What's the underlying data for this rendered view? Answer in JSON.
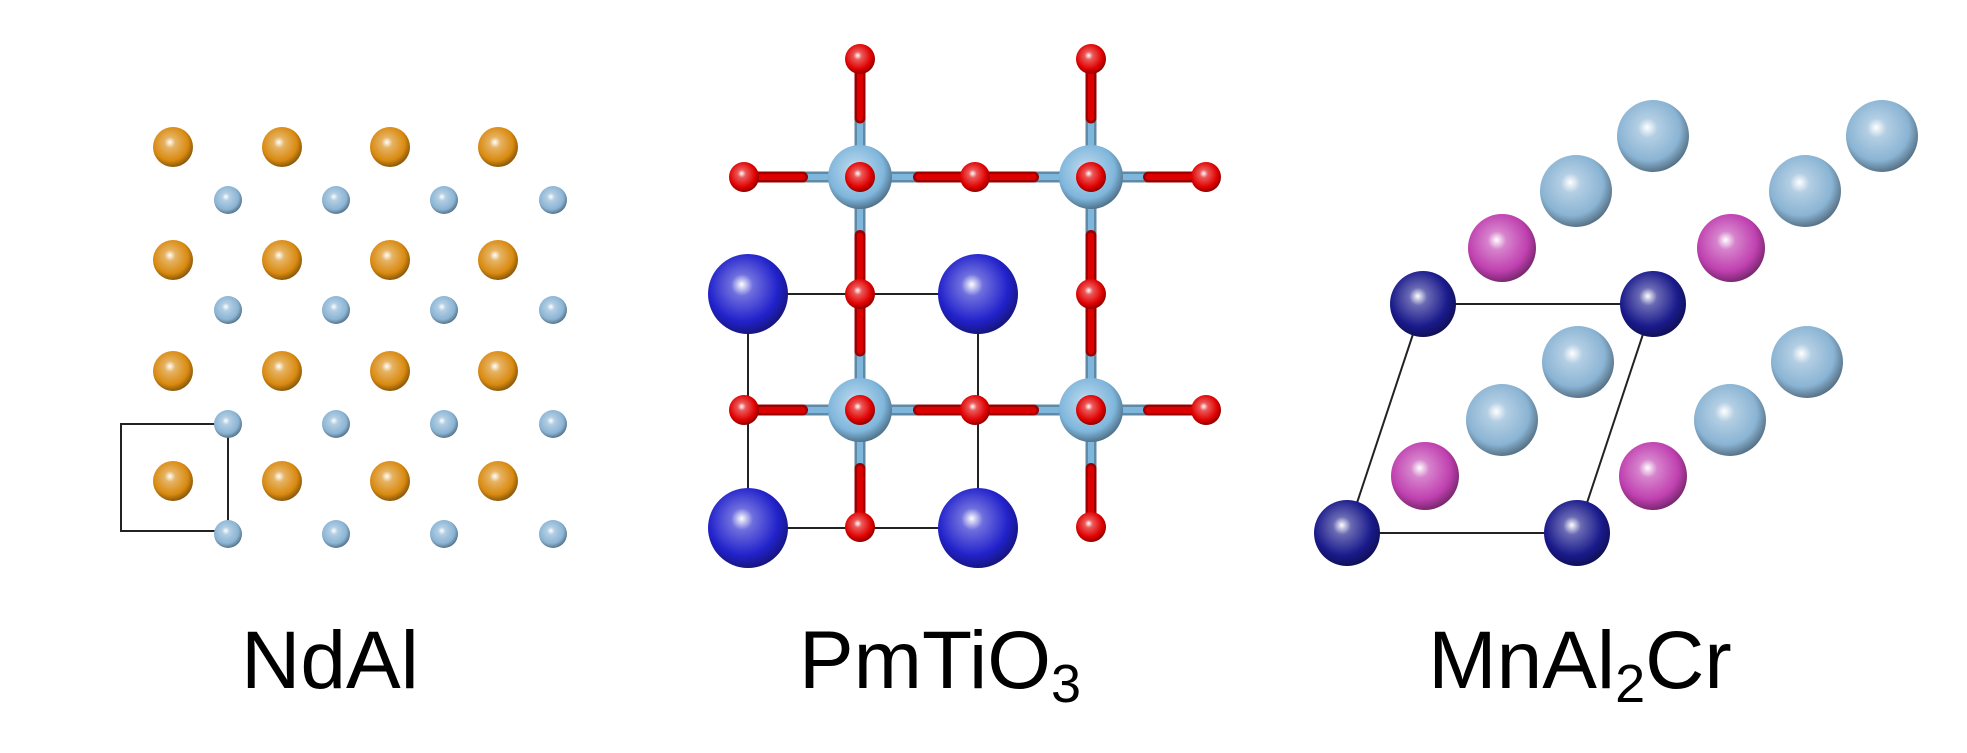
{
  "panels": [
    {
      "formula": "NdAl",
      "formula_parts": [
        {
          "text": "NdAl",
          "sub": ""
        }
      ],
      "atom_species": [
        "Nd",
        "Al"
      ]
    },
    {
      "formula": "PmTiO3",
      "formula_parts": [
        {
          "text": "PmTiO",
          "sub": "3"
        }
      ],
      "atom_species": [
        "Pm",
        "Ti",
        "O"
      ]
    },
    {
      "formula": "MnAl2Cr",
      "formula_parts": [
        {
          "text": "MnAl",
          "sub": "2"
        },
        {
          "text": "Cr",
          "sub": ""
        }
      ],
      "atom_species": [
        "Mn",
        "Al",
        "Cr"
      ]
    }
  ],
  "colors": {
    "Nd": "#d98a10",
    "Al": "#8ab4d4",
    "Pm": "#2222cc",
    "Ti": "#7fb6dc",
    "O": "#e00000",
    "Mn": "#1a1a8c",
    "Cr": "#c040b0",
    "cell_line": "#222222",
    "bond_light": "#7fb6dc",
    "bond_red": "#dd0000"
  }
}
